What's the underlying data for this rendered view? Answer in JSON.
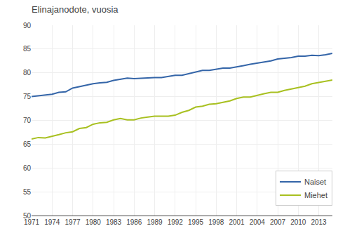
{
  "chart_data": {
    "type": "line",
    "title": "Elinajanodote, vuosia",
    "x": [
      1971,
      1972,
      1973,
      1974,
      1975,
      1976,
      1977,
      1978,
      1979,
      1980,
      1981,
      1982,
      1983,
      1984,
      1985,
      1986,
      1987,
      1988,
      1989,
      1990,
      1991,
      1992,
      1993,
      1994,
      1995,
      1996,
      1997,
      1998,
      1999,
      2000,
      2001,
      2002,
      2003,
      2004,
      2005,
      2006,
      2007,
      2008,
      2009,
      2010,
      2011,
      2012,
      2013,
      2014,
      2015
    ],
    "series": [
      {
        "name": "Naiset",
        "color": "#3465A8",
        "values": [
          75.0,
          75.2,
          75.3,
          75.5,
          75.9,
          76.0,
          76.8,
          77.1,
          77.5,
          77.7,
          77.9,
          78.0,
          78.4,
          78.7,
          78.9,
          78.8,
          78.9,
          79.0,
          79.0,
          79.0,
          79.3,
          79.5,
          79.5,
          79.8,
          80.2,
          80.5,
          80.5,
          80.8,
          81.0,
          81.0,
          81.2,
          81.5,
          81.8,
          82.0,
          82.3,
          82.5,
          82.9,
          83.0,
          83.2,
          83.5,
          83.5,
          83.7,
          83.6,
          83.8,
          84.1
        ]
      },
      {
        "name": "Miehet",
        "color": "#A8C020",
        "values": [
          66.1,
          66.4,
          66.3,
          66.6,
          67.0,
          67.4,
          67.6,
          68.3,
          68.5,
          69.2,
          69.5,
          69.6,
          70.1,
          70.4,
          70.1,
          70.1,
          70.5,
          70.7,
          70.9,
          70.9,
          70.9,
          71.1,
          71.7,
          72.1,
          72.8,
          73.0,
          73.4,
          73.5,
          73.8,
          74.1,
          74.6,
          74.9,
          74.9,
          75.3,
          75.6,
          75.9,
          75.9,
          76.3,
          76.6,
          76.9,
          77.2,
          77.7,
          78.0,
          78.2,
          78.5
        ]
      }
    ],
    "xlim": [
      1971,
      2015
    ],
    "ylim": [
      50,
      90
    ],
    "xticks": [
      1971,
      1974,
      1977,
      1980,
      1983,
      1986,
      1989,
      1992,
      1995,
      1998,
      2001,
      2004,
      2007,
      2010,
      2013
    ],
    "yticks": [
      50,
      55,
      60,
      65,
      70,
      75,
      80,
      85,
      90
    ],
    "grid": true,
    "legend": "lower right"
  }
}
